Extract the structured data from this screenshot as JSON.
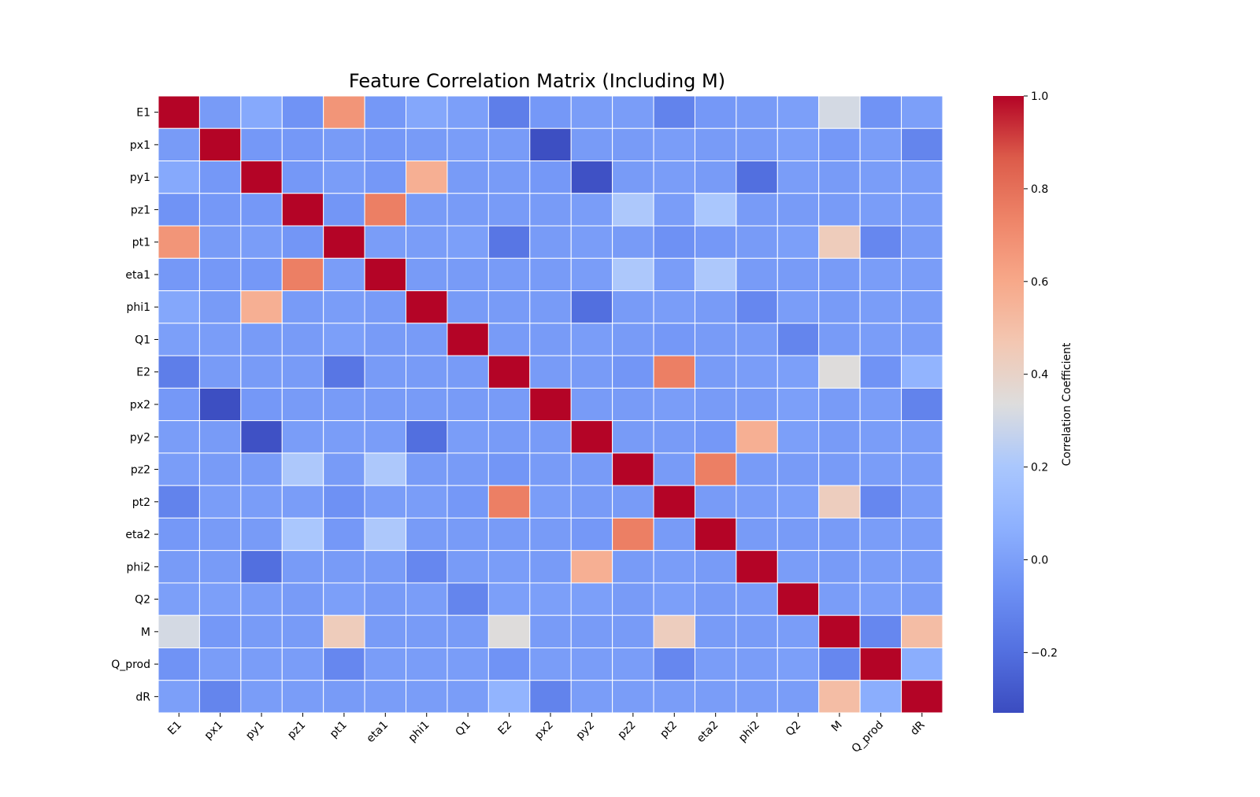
{
  "chart_data": {
    "type": "heatmap",
    "title": "Feature Correlation Matrix (Including M)",
    "labels": [
      "E1",
      "px1",
      "py1",
      "pz1",
      "pt1",
      "eta1",
      "phi1",
      "Q1",
      "E2",
      "px2",
      "py2",
      "pz2",
      "pt2",
      "eta2",
      "phi2",
      "Q2",
      "M",
      "Q_prod",
      "dR"
    ],
    "row_tick_labels": [
      "E1",
      "px1 ",
      "py1",
      "pz1",
      "pt1",
      "eta1",
      "phi1",
      "Q1",
      "E2",
      "px2",
      "py2",
      "pz2",
      "pt2",
      "eta2",
      "phi2",
      "Q2",
      "M",
      "Q_prod",
      "dR"
    ],
    "colormap": "coolwarm",
    "vmin": -0.33,
    "vmax": 1.0,
    "colorbar": {
      "label": "Correlation Coefficient",
      "ticks": [
        1.0,
        0.8,
        0.6,
        0.4,
        0.2,
        0.0,
        -0.2
      ],
      "tick_labels": [
        "1.0",
        "0.8",
        "0.6",
        "0.4",
        "0.2",
        "0.0",
        "−0.2"
      ]
    },
    "gridlines": "white",
    "values": [
      [
        1.0,
        -0.02,
        0.04,
        -0.05,
        0.67,
        -0.03,
        0.03,
        0.0,
        -0.14,
        -0.03,
        -0.01,
        -0.01,
        -0.12,
        -0.03,
        -0.02,
        0.0,
        0.31,
        -0.05,
        0.0
      ],
      [
        -0.02,
        1.0,
        -0.03,
        -0.03,
        -0.02,
        -0.03,
        -0.02,
        -0.01,
        -0.02,
        -0.32,
        -0.02,
        -0.02,
        -0.01,
        -0.02,
        -0.02,
        0.0,
        -0.03,
        -0.01,
        -0.11
      ],
      [
        0.04,
        -0.03,
        1.0,
        -0.03,
        -0.01,
        -0.03,
        0.57,
        -0.02,
        -0.02,
        -0.03,
        -0.31,
        -0.02,
        -0.01,
        -0.02,
        -0.2,
        -0.01,
        -0.02,
        -0.01,
        -0.01
      ],
      [
        -0.05,
        -0.03,
        -0.03,
        1.0,
        -0.04,
        0.75,
        -0.02,
        -0.02,
        -0.02,
        -0.02,
        -0.01,
        0.21,
        -0.01,
        0.2,
        -0.02,
        -0.02,
        -0.02,
        -0.01,
        -0.01
      ],
      [
        0.67,
        -0.02,
        -0.01,
        -0.04,
        1.0,
        -0.01,
        -0.01,
        0.0,
        -0.17,
        -0.02,
        -0.01,
        -0.02,
        -0.06,
        -0.03,
        -0.02,
        0.0,
        0.44,
        -0.1,
        -0.02
      ],
      [
        -0.03,
        -0.03,
        -0.03,
        0.75,
        -0.01,
        1.0,
        -0.02,
        -0.02,
        -0.02,
        -0.02,
        -0.01,
        0.21,
        -0.01,
        0.21,
        -0.02,
        -0.02,
        -0.02,
        -0.01,
        -0.01
      ],
      [
        0.03,
        -0.02,
        0.57,
        -0.02,
        -0.01,
        -0.02,
        1.0,
        -0.02,
        -0.02,
        -0.02,
        -0.2,
        -0.02,
        -0.01,
        -0.02,
        -0.1,
        -0.01,
        -0.02,
        -0.01,
        -0.01
      ],
      [
        0.0,
        -0.01,
        -0.02,
        -0.02,
        0.0,
        -0.02,
        -0.02,
        1.0,
        -0.02,
        -0.02,
        -0.01,
        -0.02,
        -0.03,
        -0.02,
        -0.02,
        -0.11,
        -0.02,
        -0.01,
        -0.01
      ],
      [
        -0.14,
        -0.02,
        -0.02,
        -0.02,
        -0.17,
        -0.02,
        -0.02,
        -0.02,
        1.0,
        -0.02,
        -0.02,
        -0.04,
        0.75,
        -0.02,
        -0.01,
        0.0,
        0.34,
        -0.05,
        0.09
      ],
      [
        -0.03,
        -0.32,
        -0.03,
        -0.02,
        -0.02,
        -0.02,
        -0.02,
        -0.02,
        -0.02,
        1.0,
        -0.02,
        -0.02,
        -0.01,
        -0.02,
        -0.02,
        0.0,
        -0.02,
        -0.01,
        -0.12
      ],
      [
        -0.01,
        -0.02,
        -0.31,
        -0.01,
        -0.01,
        -0.01,
        -0.2,
        -0.01,
        -0.02,
        -0.02,
        1.0,
        -0.02,
        -0.02,
        -0.03,
        0.57,
        0.0,
        -0.02,
        -0.01,
        -0.01
      ],
      [
        -0.01,
        -0.02,
        -0.02,
        0.21,
        -0.02,
        0.21,
        -0.02,
        -0.02,
        -0.04,
        -0.02,
        -0.02,
        1.0,
        -0.02,
        0.75,
        -0.02,
        -0.02,
        -0.02,
        -0.01,
        -0.01
      ],
      [
        -0.12,
        -0.01,
        -0.01,
        -0.01,
        -0.06,
        -0.01,
        -0.01,
        -0.03,
        0.75,
        -0.01,
        -0.02,
        -0.02,
        1.0,
        -0.02,
        -0.01,
        0.0,
        0.43,
        -0.1,
        -0.01
      ],
      [
        -0.03,
        -0.02,
        -0.02,
        0.2,
        -0.03,
        0.21,
        -0.02,
        -0.02,
        -0.02,
        -0.02,
        -0.03,
        0.75,
        -0.02,
        1.0,
        -0.02,
        -0.02,
        -0.02,
        -0.01,
        -0.01
      ],
      [
        -0.02,
        -0.02,
        -0.2,
        -0.02,
        -0.02,
        -0.02,
        -0.1,
        -0.02,
        -0.01,
        -0.02,
        0.57,
        -0.02,
        -0.01,
        -0.02,
        1.0,
        -0.01,
        -0.02,
        -0.01,
        -0.01
      ],
      [
        0.0,
        0.0,
        -0.01,
        -0.02,
        0.0,
        -0.02,
        -0.01,
        -0.11,
        0.0,
        0.0,
        0.0,
        -0.02,
        0.0,
        -0.02,
        -0.01,
        1.0,
        -0.01,
        0.0,
        -0.01
      ],
      [
        0.31,
        -0.03,
        -0.02,
        -0.02,
        0.44,
        -0.02,
        -0.02,
        -0.02,
        0.34,
        -0.02,
        -0.02,
        -0.02,
        0.43,
        -0.02,
        -0.02,
        -0.01,
        1.0,
        -0.1,
        0.51
      ],
      [
        -0.05,
        -0.01,
        -0.01,
        -0.01,
        -0.1,
        -0.01,
        -0.01,
        -0.01,
        -0.05,
        -0.01,
        -0.01,
        -0.01,
        -0.1,
        -0.01,
        -0.01,
        0.0,
        -0.1,
        1.0,
        0.06
      ],
      [
        0.0,
        -0.11,
        -0.01,
        -0.01,
        -0.02,
        -0.01,
        -0.01,
        -0.01,
        0.09,
        -0.12,
        -0.01,
        -0.01,
        -0.01,
        -0.01,
        -0.01,
        -0.01,
        0.51,
        0.06,
        1.0
      ]
    ]
  }
}
